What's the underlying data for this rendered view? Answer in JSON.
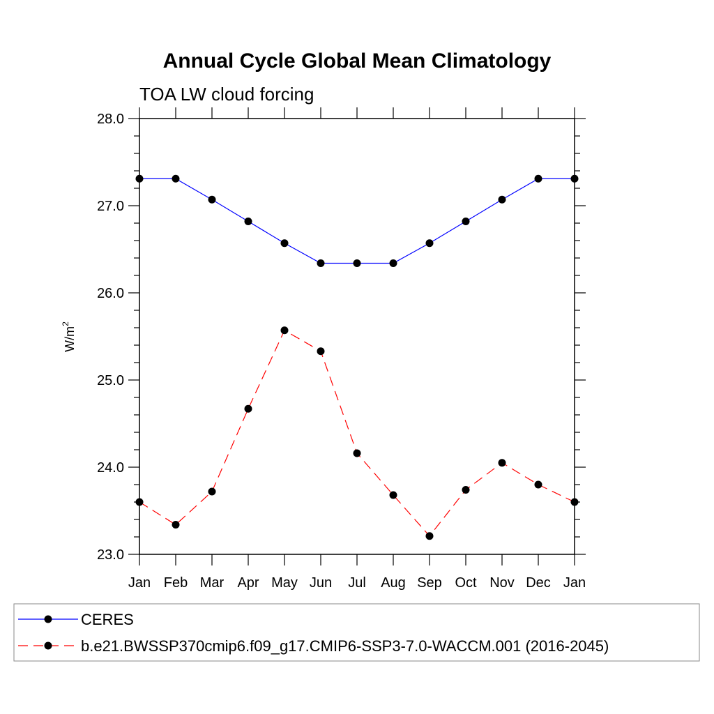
{
  "chart_data": {
    "type": "line",
    "title": "Annual Cycle Global Mean Climatology",
    "subtitle": "TOA LW cloud forcing",
    "xlabel": "",
    "ylabel": "W/m",
    "ylabel_superscript": "2",
    "categories": [
      "Jan",
      "Feb",
      "Mar",
      "Apr",
      "May",
      "Jun",
      "Jul",
      "Aug",
      "Sep",
      "Oct",
      "Nov",
      "Dec",
      "Jan"
    ],
    "ylim": [
      23.0,
      28.0
    ],
    "yticks": [
      "23.0",
      "24.0",
      "25.0",
      "26.0",
      "27.0",
      "28.0"
    ],
    "grid": false,
    "legend_position": "bottom",
    "series": [
      {
        "name": "CERES",
        "color": "#0000ff",
        "line_style": "solid",
        "marker": "filled-circle",
        "values": [
          27.31,
          27.31,
          27.07,
          26.82,
          26.57,
          26.34,
          26.34,
          26.34,
          26.57,
          26.82,
          27.07,
          27.31,
          27.31
        ]
      },
      {
        "name": "b.e21.BWSSP370cmip6.f09_g17.CMIP6-SSP3-7.0-WACCM.001 (2016-2045)",
        "color": "#ff0000",
        "line_style": "dashed",
        "marker": "filled-circle",
        "values": [
          23.6,
          23.34,
          23.72,
          24.67,
          25.57,
          25.33,
          24.16,
          23.68,
          23.21,
          23.74,
          24.05,
          23.8,
          23.6
        ]
      }
    ]
  }
}
